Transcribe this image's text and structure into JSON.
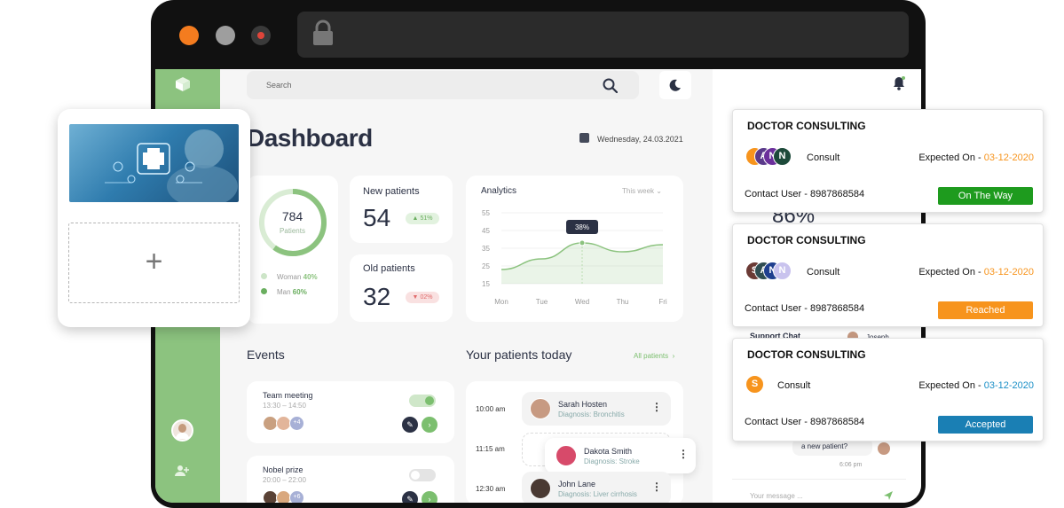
{
  "colors": {
    "accent_green": "#8cc37f",
    "frame": "#111111",
    "status_on_the_way": "#1e9b1e",
    "status_reached": "#f7941d",
    "status_accepted": "#1a7fb4",
    "date_orange": "#f7941d",
    "date_blue": "#1a8fc7"
  },
  "browser": {
    "icons": [
      "close-dot",
      "minimize-dot",
      "maximize-dot",
      "lock-icon"
    ]
  },
  "search": {
    "placeholder": "Search"
  },
  "dashboard": {
    "title": "Dashboard",
    "date": "Wednesday, 24.03.2021"
  },
  "stats": {
    "total": {
      "value": "784",
      "label": "Patients"
    },
    "legend": [
      {
        "label": "Woman",
        "value": "40%"
      },
      {
        "label": "Man",
        "value": "60%"
      }
    ],
    "new_patients": {
      "label": "New patients",
      "value": "54",
      "change": "51%",
      "arrow": "▲"
    },
    "old_patients": {
      "label": "Old patients",
      "value": "32",
      "change": "02%",
      "arrow": "▼"
    }
  },
  "chart_data": {
    "type": "area",
    "title": "Analytics",
    "range_selector": "This week",
    "categories": [
      "Mon",
      "Tue",
      "Wed",
      "Thu",
      "Fri"
    ],
    "y_ticks": [
      "55",
      "45",
      "35",
      "25",
      "15"
    ],
    "ylim": [
      15,
      55
    ],
    "series": [
      {
        "values": [
          23,
          29,
          38,
          33,
          37
        ]
      }
    ],
    "tooltip": {
      "category": "Wed",
      "value": 38,
      "label": "38%"
    },
    "grid": true
  },
  "events": {
    "title": "Events",
    "items": [
      {
        "name": "Team meeting",
        "time": "13:30 – 14:50",
        "extra": "+4",
        "toggle_on": true
      },
      {
        "name": "Nobel prize",
        "time": "20:00 – 22:00",
        "extra": "+6",
        "toggle_on": false
      }
    ]
  },
  "patients_today": {
    "title": "Your patients today",
    "link": "All patients",
    "items": [
      {
        "time": "10:00 am",
        "name": "Sarah Hosten",
        "diagnosis": "Diagnosis: Bronchitis"
      },
      {
        "time": "11:15 am",
        "name": "Dakota Smith",
        "diagnosis": "Diagnosis: Stroke"
      },
      {
        "time": "12:30 am",
        "name": "John Lane",
        "diagnosis": "Diagnosis: Liver cirrhosis"
      }
    ]
  },
  "right_panel": {
    "big_percent": "86%",
    "support_chat": "Support Chat",
    "chat_contact": "Joseph",
    "message": "a new patient?",
    "message_time": "6:06 pm",
    "input_placeholder": "Your message ..."
  },
  "upload": {
    "plus": "+"
  },
  "consult_cards": [
    {
      "title": "DOCTOR CONSULTING",
      "avatars": [
        "",
        "A",
        "N",
        "N"
      ],
      "consult": "Consult",
      "expected_label": "Expected On - ",
      "expected_date": "03-12-2020",
      "contact": "Contact User - 8987868584",
      "status": "On The Way"
    },
    {
      "title": "DOCTOR CONSULTING",
      "avatars": [
        "S",
        "A",
        "N",
        "N"
      ],
      "consult": "Consult",
      "expected_label": "Expected On - ",
      "expected_date": "03-12-2020",
      "contact": "Contact User - 8987868584",
      "status": "Reached"
    },
    {
      "title": "DOCTOR CONSULTING",
      "avatars": [
        "S"
      ],
      "consult": "Consult",
      "expected_label": "Expected On - ",
      "expected_date": "03-12-2020",
      "contact": "Contact User - 8987868584",
      "status": "Accepted"
    }
  ]
}
